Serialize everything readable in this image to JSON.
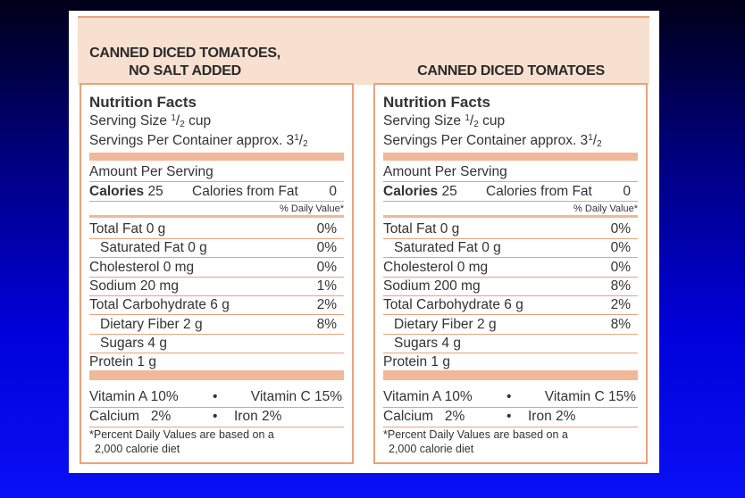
{
  "header": {
    "left_title_line1": "CANNED DICED TOMATOES,",
    "left_title_line2": "NO SALT ADDED",
    "right_title": "CANNED DICED TOMATOES"
  },
  "labels": [
    {
      "title": "Nutrition Facts",
      "serving_size_label": "Serving Size",
      "serving_size_num": "1",
      "serving_size_den": "2",
      "serving_size_unit": "cup",
      "servings_label": "Servings Per Container approx. 3",
      "servings_num": "1",
      "servings_den": "2",
      "amount_per_serving": "Amount Per Serving",
      "calories_label": "Calories",
      "calories_value": "25",
      "calories_fat_label": "Calories from Fat",
      "calories_fat_value": "0",
      "dv_header": "% Daily Value*",
      "nutrients": [
        {
          "label": "Total Fat 0 g",
          "dv": "0%"
        },
        {
          "label": "Saturated Fat 0 g",
          "dv": "0%"
        },
        {
          "label": "Cholesterol 0 mg",
          "dv": "0%"
        },
        {
          "label": "Sodium 20 mg",
          "dv": "1%"
        },
        {
          "label": "Total Carbohydrate 6 g",
          "dv": "2%"
        },
        {
          "label": "Dietary Fiber 2 g",
          "dv": "8%"
        },
        {
          "label": "Sugars 4 g",
          "dv": ""
        },
        {
          "label": "Protein 1 g",
          "dv": ""
        }
      ],
      "vitamins": [
        {
          "left": "Vitamin A 10%",
          "sep": "•",
          "right": "Vitamin C 15%"
        },
        {
          "left": "Calcium   2%",
          "sep": "•",
          "right": "Iron 2%"
        }
      ],
      "footnote_line1": "*Percent Daily Values are based on a",
      "footnote_line2": "2,000 calorie diet"
    },
    {
      "title": "Nutrition Facts",
      "serving_size_label": "Serving Size",
      "serving_size_num": "1",
      "serving_size_den": "2",
      "serving_size_unit": "cup",
      "servings_label": "Servings Per Container approx. 3",
      "servings_num": "1",
      "servings_den": "2",
      "amount_per_serving": "Amount Per Serving",
      "calories_label": "Calories",
      "calories_value": "25",
      "calories_fat_label": "Calories from Fat",
      "calories_fat_value": "0",
      "dv_header": "% Daily Value*",
      "nutrients": [
        {
          "label": "Total Fat 0 g",
          "dv": "0%"
        },
        {
          "label": "Saturated Fat 0 g",
          "dv": "0%"
        },
        {
          "label": "Cholesterol 0 mg",
          "dv": "0%"
        },
        {
          "label": "Sodium 200 mg",
          "dv": "8%"
        },
        {
          "label": "Total Carbohydrate 6 g",
          "dv": "2%"
        },
        {
          "label": "Dietary Fiber 2 g",
          "dv": "8%"
        },
        {
          "label": "Sugars 4 g",
          "dv": ""
        },
        {
          "label": "Protein 1 g",
          "dv": ""
        }
      ],
      "vitamins": [
        {
          "left": "Vitamin A 10%",
          "sep": "•",
          "right": "Vitamin C 15%"
        },
        {
          "left": "Calcium   2%",
          "sep": "•",
          "right": "Iron 2%"
        }
      ],
      "footnote_line1": "*Percent Daily Values are based on a",
      "footnote_line2": "2,000 calorie diet"
    }
  ]
}
